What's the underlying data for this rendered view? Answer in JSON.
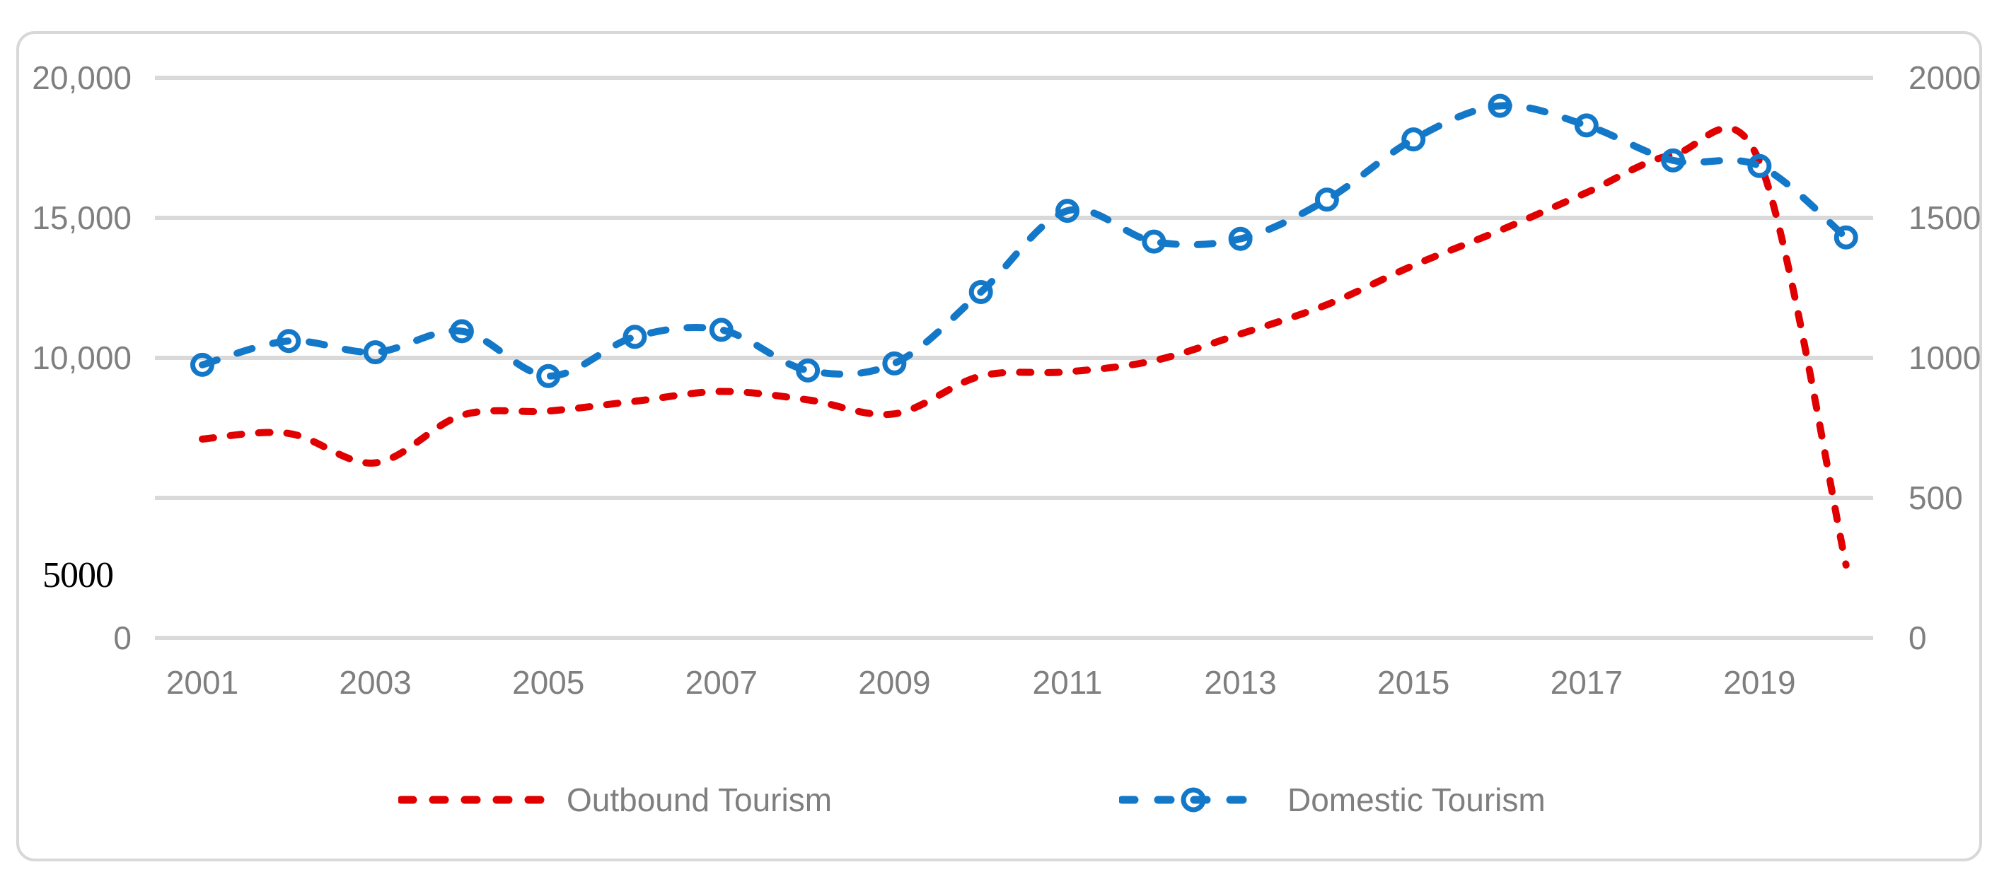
{
  "chart_data": {
    "type": "line",
    "title": "",
    "x": [
      2001,
      2002,
      2003,
      2004,
      2005,
      2006,
      2007,
      2008,
      2009,
      2010,
      2011,
      2012,
      2013,
      2014,
      2015,
      2016,
      2017,
      2018,
      2019,
      2020
    ],
    "x_axis": {
      "tick_labels": [
        "2001",
        "2003",
        "2005",
        "2007",
        "2009",
        "2011",
        "2013",
        "2015",
        "2017",
        "2019"
      ]
    },
    "left_axis": {
      "range": [
        0,
        20000
      ],
      "ticks": [
        {
          "label": "20,000",
          "value": 20000
        },
        {
          "label": "15,000",
          "value": 15000
        },
        {
          "label": "10,000",
          "value": 10000
        },
        {
          "label": "0",
          "value": 0
        }
      ]
    },
    "right_axis": {
      "range": [
        0,
        2000
      ],
      "ticks": [
        {
          "label": "2000",
          "value": 2000
        },
        {
          "label": "1500",
          "value": 1500
        },
        {
          "label": "1000",
          "value": 1000
        },
        {
          "label": "500",
          "value": 500
        },
        {
          "label": "0",
          "value": 0
        }
      ]
    },
    "gridline_values_left": [
      20000,
      15000,
      10000,
      5000
    ],
    "annotation_label": "5000",
    "grid": true,
    "legend_position": "bottom",
    "series": [
      {
        "name": "Outbound Tourism",
        "axis": "right",
        "color": "#e00000",
        "line_style": "dashed",
        "marker": "none",
        "values": [
          710,
          730,
          625,
          795,
          810,
          845,
          880,
          850,
          800,
          935,
          950,
          990,
          1085,
          1190,
          1330,
          1455,
          1590,
          1725,
          1700,
          260
        ]
      },
      {
        "name": "Domestic Tourism",
        "axis": "left",
        "color": "#1478c8",
        "line_style": "dashed",
        "marker": "circle",
        "values": [
          9750,
          10600,
          10200,
          10950,
          9350,
          10750,
          11000,
          9550,
          9800,
          12350,
          15250,
          14150,
          14250,
          15650,
          17800,
          19000,
          18300,
          17050,
          16850,
          14300
        ]
      }
    ]
  },
  "colors": {
    "gridline": "#d9d9d9",
    "axis_line": "#d9d9d9",
    "axis_text": "#7f7f7f",
    "frame_border": "#d8d8d8",
    "annotation_text": "#000000"
  }
}
